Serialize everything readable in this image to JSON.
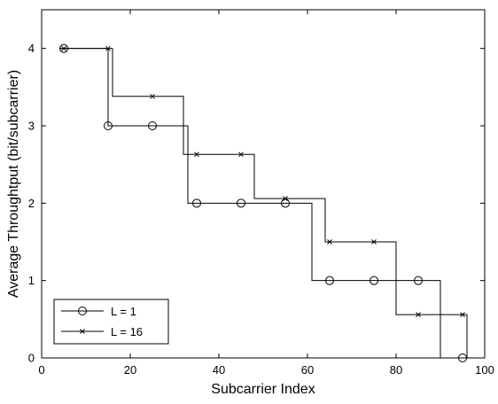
{
  "chart_data": {
    "type": "line",
    "title": "",
    "xlabel": "Subcarrier Index",
    "ylabel": "Average Throughtput (bit/subcarrier)",
    "xlim": [
      0,
      100
    ],
    "ylim": [
      0,
      4.5
    ],
    "x_ticks": [
      0,
      20,
      40,
      60,
      80,
      100
    ],
    "y_ticks": [
      0,
      1,
      2,
      3,
      4
    ],
    "grid": false,
    "legend_position": "bottom-left",
    "series": [
      {
        "name": "L = 1",
        "marker": "circle",
        "color": "#000000",
        "line": [
          [
            4,
            4
          ],
          [
            15,
            4
          ],
          [
            15,
            3
          ],
          [
            33,
            3
          ],
          [
            33,
            2
          ],
          [
            61,
            2
          ],
          [
            61,
            1
          ],
          [
            90,
            1
          ],
          [
            90,
            0
          ],
          [
            96,
            0
          ]
        ],
        "markers": [
          [
            5,
            4
          ],
          [
            15,
            3
          ],
          [
            25,
            3
          ],
          [
            35,
            2
          ],
          [
            45,
            2
          ],
          [
            55,
            2
          ],
          [
            65,
            1
          ],
          [
            75,
            1
          ],
          [
            85,
            1
          ],
          [
            95,
            0
          ]
        ]
      },
      {
        "name": "L = 16",
        "marker": "x",
        "color": "#000000",
        "line": [
          [
            4,
            4
          ],
          [
            16,
            4
          ],
          [
            16,
            3.38
          ],
          [
            32,
            3.38
          ],
          [
            32,
            2.63
          ],
          [
            48,
            2.63
          ],
          [
            48,
            2.06
          ],
          [
            64,
            2.06
          ],
          [
            64,
            1.5
          ],
          [
            80,
            1.5
          ],
          [
            80,
            0.56
          ],
          [
            96,
            0.56
          ],
          [
            96,
            0
          ]
        ],
        "markers": [
          [
            5,
            4
          ],
          [
            15,
            4
          ],
          [
            25,
            3.38
          ],
          [
            35,
            2.63
          ],
          [
            45,
            2.63
          ],
          [
            55,
            2.06
          ],
          [
            65,
            1.5
          ],
          [
            75,
            1.5
          ],
          [
            85,
            0.56
          ],
          [
            95,
            0.56
          ]
        ]
      }
    ]
  }
}
